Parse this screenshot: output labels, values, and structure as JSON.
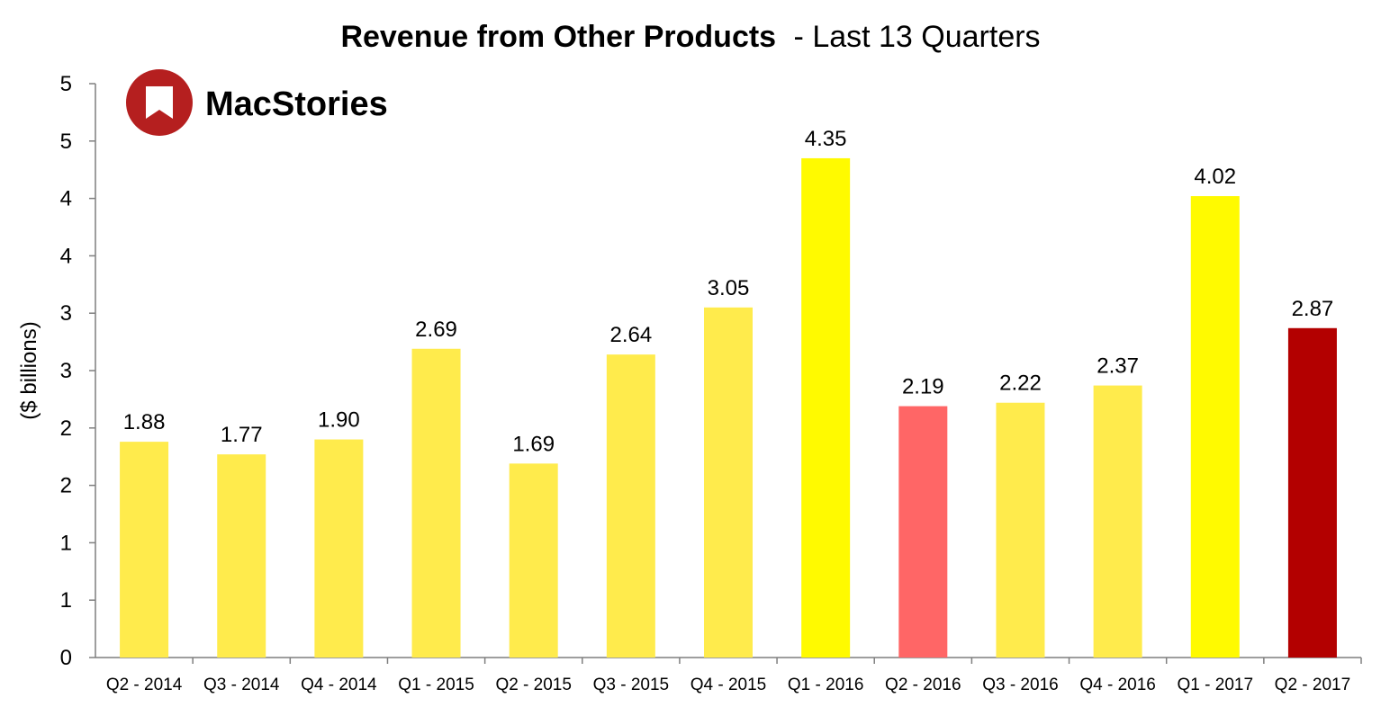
{
  "chart_data": {
    "type": "bar",
    "title": "Revenue from Other Products",
    "subtitle": "- Last 13 Quarters",
    "xlabel": "",
    "ylabel": "($ billions)",
    "ylim": [
      0,
      5
    ],
    "grid": false,
    "categories": [
      "Q2 - 2014",
      "Q3 - 2014",
      "Q4 - 2014",
      "Q1 - 2015",
      "Q2 - 2015",
      "Q3 - 2015",
      "Q4 - 2015",
      "Q1 - 2016",
      "Q2 - 2016",
      "Q3 - 2016",
      "Q4 - 2016",
      "Q1 - 2017",
      "Q2 - 2017"
    ],
    "values": [
      1.88,
      1.77,
      1.9,
      2.69,
      1.69,
      2.64,
      3.05,
      4.35,
      2.19,
      2.22,
      2.37,
      4.02,
      2.87
    ],
    "value_labels": [
      "1.88",
      "1.77",
      "1.90",
      "2.69",
      "1.69",
      "2.64",
      "3.05",
      "4.35",
      "2.19",
      "2.22",
      "2.37",
      "4.02",
      "2.87"
    ],
    "bar_colors": [
      "#FFEB4C",
      "#FFEB4C",
      "#FFEB4C",
      "#FFEB4C",
      "#FFEB4C",
      "#FFEB4C",
      "#FFEB4C",
      "#FFFA00",
      "#FF6666",
      "#FFEB4C",
      "#FFEB4C",
      "#FFFA00",
      "#B30000"
    ],
    "y_ticks": [
      {
        "value": 0,
        "label": "0"
      },
      {
        "value": 0.5,
        "label": "1"
      },
      {
        "value": 1,
        "label": "1"
      },
      {
        "value": 1.5,
        "label": "2"
      },
      {
        "value": 2,
        "label": "2"
      },
      {
        "value": 2.5,
        "label": "3"
      },
      {
        "value": 3,
        "label": "3"
      },
      {
        "value": 3.5,
        "label": "4"
      },
      {
        "value": 4,
        "label": "4"
      },
      {
        "value": 4.5,
        "label": "5"
      },
      {
        "value": 5,
        "label": "5"
      }
    ]
  },
  "logo": {
    "text": "MacStories",
    "color": "#B51F1F"
  }
}
